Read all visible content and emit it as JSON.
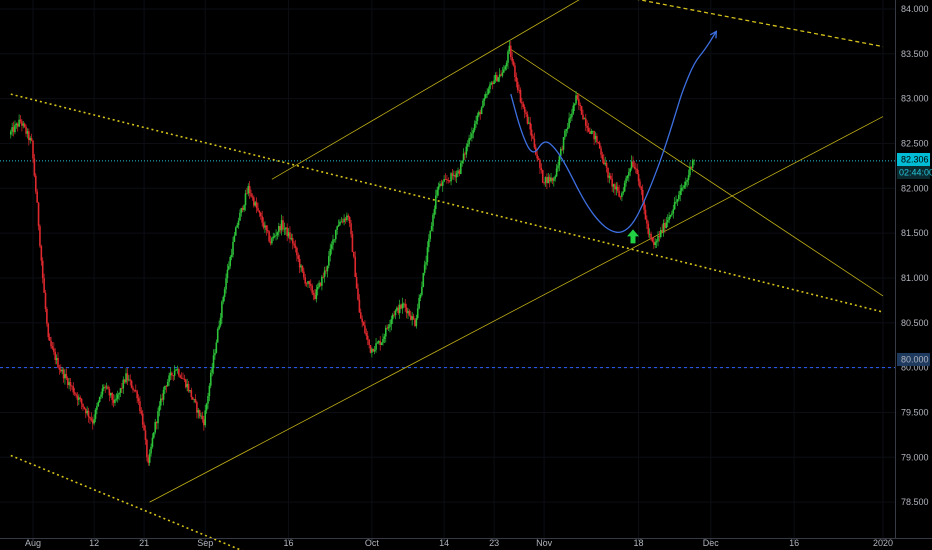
{
  "chart_data": {
    "type": "candlestick",
    "y_axis": {
      "min": 78.1,
      "max": 84.1,
      "ticks": [
        "84.000",
        "83.500",
        "83.000",
        "82.500",
        "82.000",
        "81.500",
        "81.000",
        "80.500",
        "80.000",
        "79.500",
        "79.000",
        "78.500"
      ]
    },
    "x_axis": {
      "labels": [
        {
          "label": "Aug",
          "day": 0
        },
        {
          "label": "12",
          "day": 11
        },
        {
          "label": "21",
          "day": 20
        },
        {
          "label": "Sep",
          "day": 31
        },
        {
          "label": "16",
          "day": 46
        },
        {
          "label": "Oct",
          "day": 61
        },
        {
          "label": "14",
          "day": 74
        },
        {
          "label": "23",
          "day": 83
        },
        {
          "label": "Nov",
          "day": 92
        },
        {
          "label": "18",
          "day": 109
        },
        {
          "label": "Dec",
          "day": 122
        },
        {
          "label": "16",
          "day": 137
        },
        {
          "label": "2020",
          "day": 153
        }
      ]
    },
    "price_path": [
      [
        -4,
        82.6
      ],
      [
        -2,
        82.75
      ],
      [
        0,
        82.5
      ],
      [
        1,
        81.8
      ],
      [
        2,
        81.0
      ],
      [
        3,
        80.3
      ],
      [
        5,
        80.0
      ],
      [
        7,
        79.8
      ],
      [
        9,
        79.6
      ],
      [
        11,
        79.4
      ],
      [
        13,
        79.8
      ],
      [
        15,
        79.6
      ],
      [
        17,
        79.9
      ],
      [
        19,
        79.7
      ],
      [
        20,
        79.4
      ],
      [
        21,
        78.9
      ],
      [
        22,
        79.3
      ],
      [
        24,
        79.8
      ],
      [
        26,
        80.0
      ],
      [
        28,
        79.8
      ],
      [
        30,
        79.5
      ],
      [
        31,
        79.4
      ],
      [
        33,
        80.2
      ],
      [
        35,
        81.0
      ],
      [
        37,
        81.6
      ],
      [
        39,
        82.0
      ],
      [
        41,
        81.7
      ],
      [
        43,
        81.4
      ],
      [
        45,
        81.6
      ],
      [
        47,
        81.4
      ],
      [
        49,
        81.0
      ],
      [
        51,
        80.8
      ],
      [
        53,
        81.1
      ],
      [
        55,
        81.6
      ],
      [
        57,
        81.7
      ],
      [
        58,
        81.2
      ],
      [
        59,
        80.6
      ],
      [
        61,
        80.2
      ],
      [
        63,
        80.3
      ],
      [
        65,
        80.6
      ],
      [
        67,
        80.7
      ],
      [
        69,
        80.5
      ],
      [
        71,
        81.2
      ],
      [
        73,
        82.0
      ],
      [
        75,
        82.1
      ],
      [
        77,
        82.2
      ],
      [
        79,
        82.6
      ],
      [
        81,
        82.9
      ],
      [
        83,
        83.2
      ],
      [
        85,
        83.3
      ],
      [
        86,
        83.55
      ],
      [
        88,
        83.0
      ],
      [
        90,
        82.6
      ],
      [
        92,
        82.1
      ],
      [
        94,
        82.1
      ],
      [
        96,
        82.6
      ],
      [
        98,
        83.0
      ],
      [
        100,
        82.7
      ],
      [
        102,
        82.5
      ],
      [
        104,
        82.1
      ],
      [
        106,
        81.9
      ],
      [
        108,
        82.3
      ],
      [
        109,
        82.2
      ],
      [
        111,
        81.5
      ],
      [
        112,
        81.35
      ],
      [
        114,
        81.6
      ],
      [
        116,
        81.85
      ],
      [
        118,
        82.1
      ],
      [
        119,
        82.33
      ]
    ],
    "current_price": "82.306",
    "countdown": "02:44:00",
    "marked_level": "80.000",
    "trend_lines": [
      {
        "style": "dotted",
        "points": [
          [
            -4,
            83.05
          ],
          [
            153,
            80.62
          ]
        ]
      },
      {
        "style": "dotted",
        "points": [
          [
            -4,
            79.02
          ],
          [
            40,
            77.9
          ]
        ]
      },
      {
        "style": "dashed",
        "points": [
          [
            101,
            84.2
          ],
          [
            153,
            83.58
          ]
        ]
      },
      {
        "style": "solid",
        "points": [
          [
            21,
            78.5
          ],
          [
            153,
            82.8
          ]
        ]
      },
      {
        "style": "solid",
        "points": [
          [
            43,
            82.1
          ],
          [
            101,
            84.2
          ]
        ]
      },
      {
        "style": "solid",
        "points": [
          [
            86,
            83.55
          ],
          [
            153,
            80.8
          ]
        ]
      }
    ],
    "projection": [
      [
        86,
        83.05
      ],
      [
        88,
        82.6
      ],
      [
        90,
        82.35
      ],
      [
        92,
        82.55
      ],
      [
        94,
        82.45
      ],
      [
        96,
        82.25
      ],
      [
        98,
        82.0
      ],
      [
        100,
        81.78
      ],
      [
        102,
        81.62
      ],
      [
        104,
        81.52
      ],
      [
        106,
        81.5
      ],
      [
        108,
        81.6
      ],
      [
        110,
        81.85
      ],
      [
        112,
        82.15
      ],
      [
        114,
        82.5
      ],
      [
        116,
        82.9
      ],
      [
        117,
        83.1
      ],
      [
        119,
        83.4
      ],
      [
        121,
        83.55
      ],
      [
        123,
        83.75
      ]
    ],
    "marker": {
      "type": "up-arrow",
      "day": 108,
      "price": 81.43
    }
  }
}
